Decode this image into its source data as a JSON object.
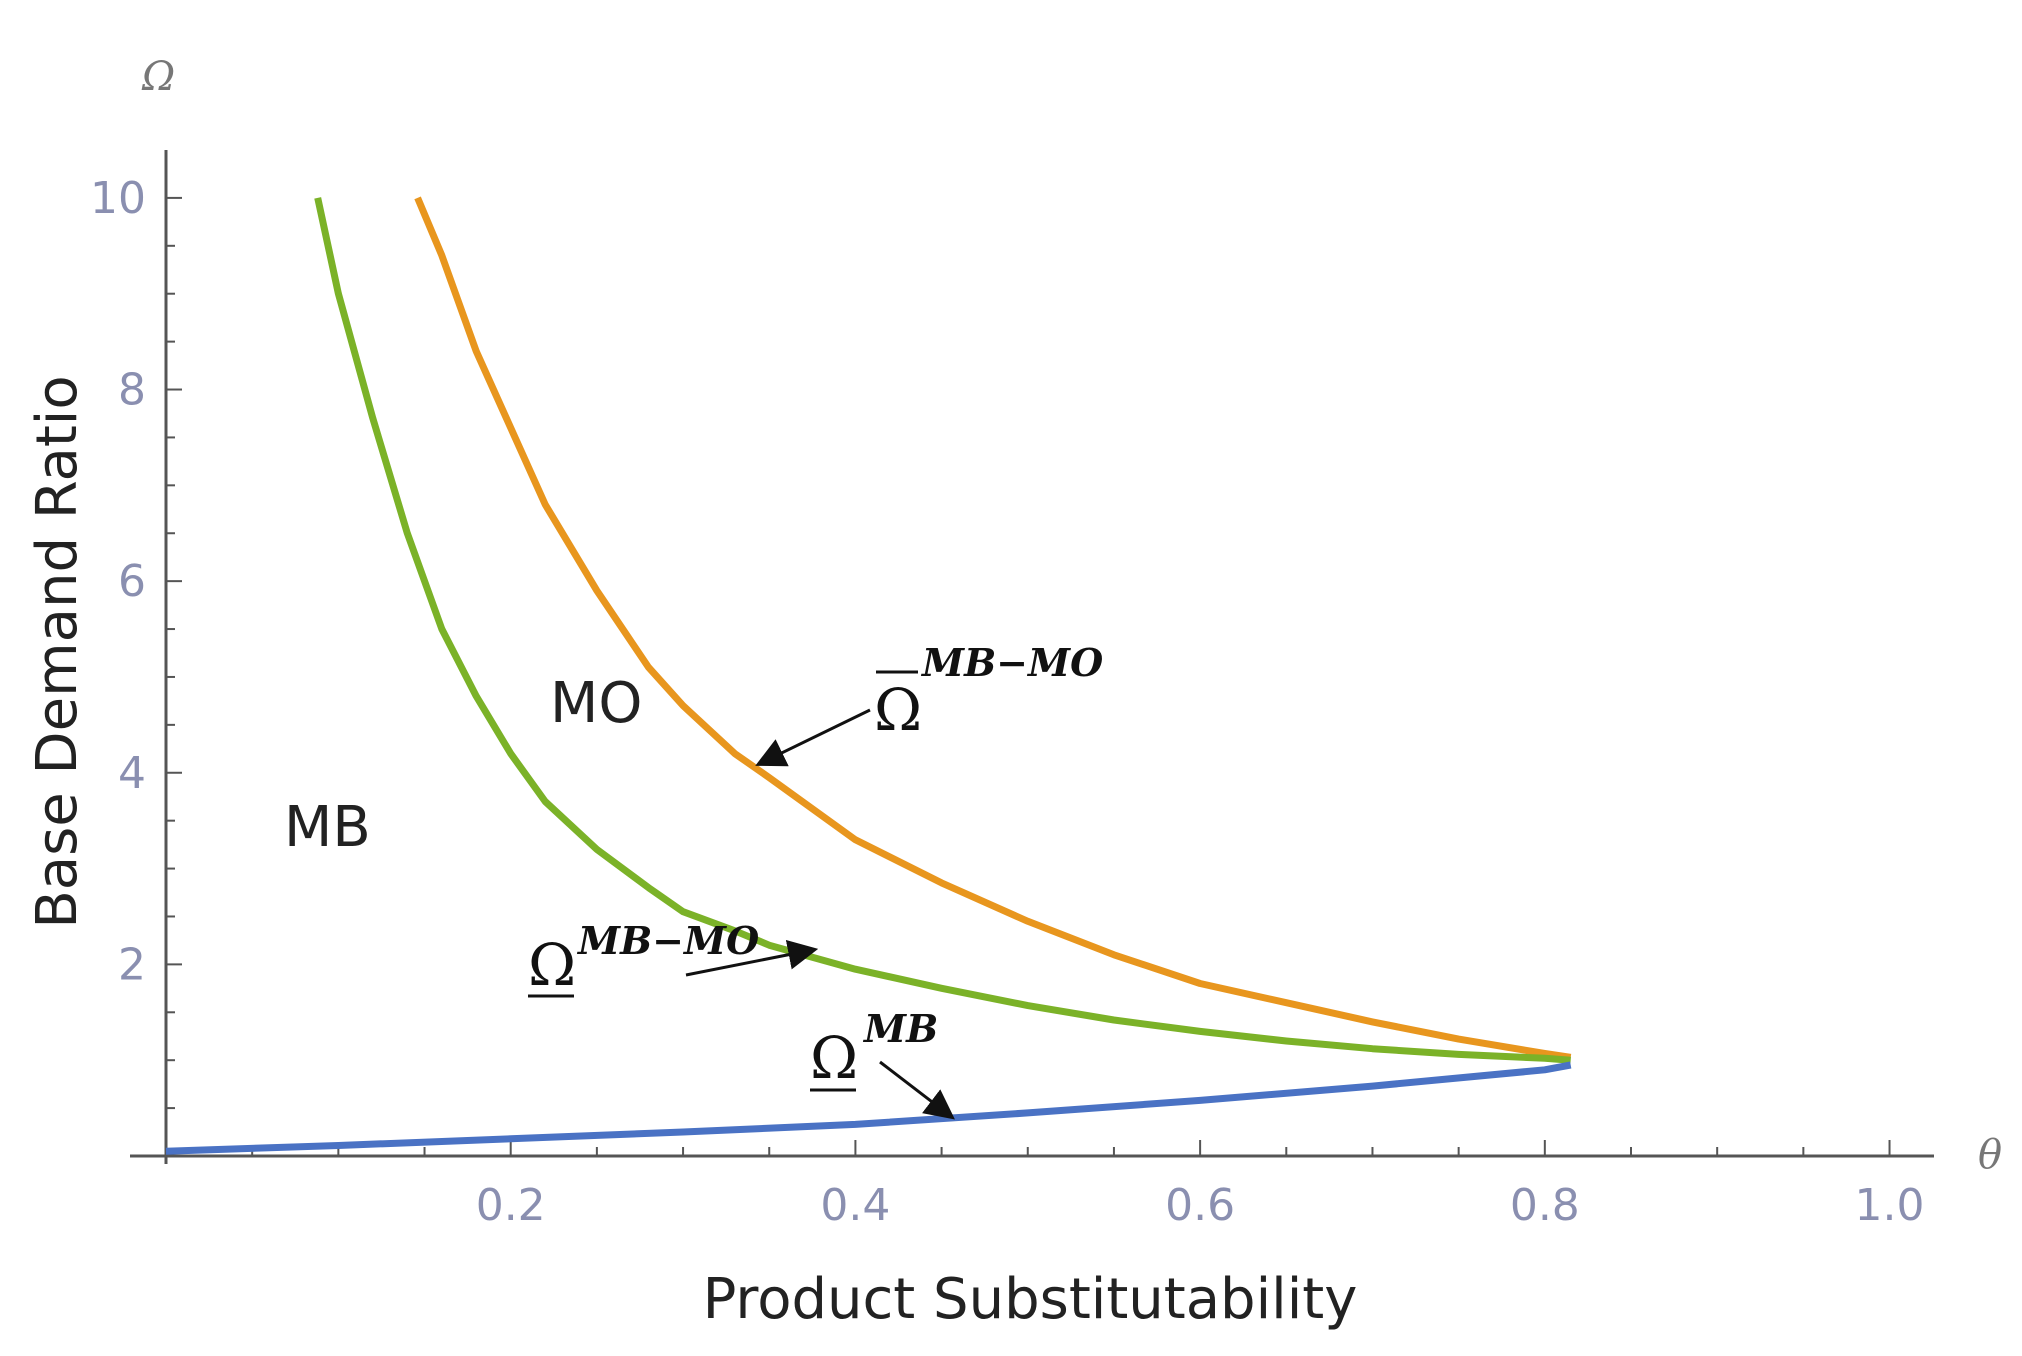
{
  "chart_data": {
    "type": "line",
    "title": "",
    "xlabel": "Product Substitutability",
    "ylabel": "Base Demand Ratio",
    "x_axis_symbol": "θ",
    "y_axis_symbol": "Ω",
    "xlim": [
      0.0,
      1.02
    ],
    "ylim": [
      0.0,
      10.5
    ],
    "x_ticks": [
      0.2,
      0.4,
      0.6,
      0.8,
      1.0
    ],
    "x_tick_labels": [
      "0.2",
      "0.4",
      "0.6",
      "0.8",
      "1.0"
    ],
    "y_ticks": [
      2,
      4,
      6,
      8,
      10
    ],
    "y_tick_labels": [
      "2",
      "4",
      "6",
      "8",
      "10"
    ],
    "colors": {
      "upper": "#e8961e",
      "lower": "#7bb228",
      "mb": "#4a72c4",
      "axis": "#555555",
      "tick_text": "#8a8fb0"
    },
    "series": [
      {
        "name": "Ω̄ MB−MO",
        "key": "upper",
        "x": [
          0.146,
          0.16,
          0.18,
          0.2,
          0.22,
          0.25,
          0.28,
          0.3,
          0.33,
          0.35,
          0.4,
          0.45,
          0.5,
          0.55,
          0.6,
          0.65,
          0.7,
          0.75,
          0.8,
          0.815
        ],
        "y": [
          10.0,
          9.4,
          8.4,
          7.6,
          6.8,
          5.9,
          5.1,
          4.7,
          4.2,
          3.95,
          3.3,
          2.85,
          2.45,
          2.1,
          1.8,
          1.6,
          1.4,
          1.22,
          1.07,
          1.03
        ]
      },
      {
        "name": "Ω MB−MO",
        "key": "lower",
        "x": [
          0.088,
          0.1,
          0.12,
          0.14,
          0.16,
          0.18,
          0.2,
          0.22,
          0.25,
          0.28,
          0.3,
          0.33,
          0.35,
          0.4,
          0.45,
          0.5,
          0.55,
          0.6,
          0.65,
          0.7,
          0.75,
          0.8,
          0.815
        ],
        "y": [
          10.0,
          9.0,
          7.7,
          6.5,
          5.5,
          4.8,
          4.2,
          3.7,
          3.2,
          2.8,
          2.55,
          2.35,
          2.2,
          1.95,
          1.75,
          1.57,
          1.42,
          1.3,
          1.2,
          1.12,
          1.06,
          1.02,
          1.0
        ]
      },
      {
        "name": "Ω MB",
        "key": "mb",
        "x": [
          0.0,
          0.1,
          0.2,
          0.3,
          0.4,
          0.5,
          0.6,
          0.7,
          0.8,
          0.815
        ],
        "y": [
          0.05,
          0.11,
          0.18,
          0.25,
          0.33,
          0.45,
          0.58,
          0.73,
          0.9,
          0.95
        ]
      }
    ],
    "annotations": [
      {
        "key": "upper_label",
        "symbol": "Ω",
        "superscript": "MB−MO",
        "bar": "over",
        "arrow_to": [
          0.345,
          4.1
        ]
      },
      {
        "key": "lower_label",
        "symbol": "Ω",
        "superscript": "MB−MO",
        "bar": "under",
        "arrow_to": [
          0.375,
          2.15
        ]
      },
      {
        "key": "mb_label",
        "symbol": "Ω",
        "superscript": "MB",
        "bar": "under",
        "arrow_to": [
          0.455,
          0.42
        ]
      }
    ],
    "regions": [
      {
        "key": "mo",
        "text": "MO"
      },
      {
        "key": "mb",
        "text": "MB"
      }
    ]
  }
}
